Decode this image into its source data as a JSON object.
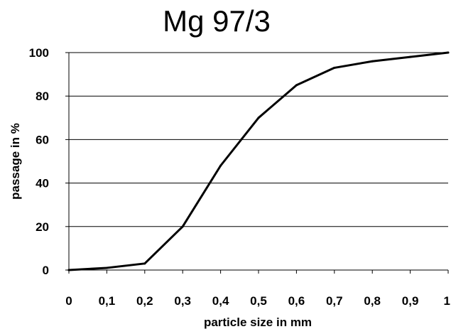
{
  "chart_data": {
    "type": "line",
    "title": "Mg 97/3",
    "xlabel": "particle size in mm",
    "ylabel": "passage in %",
    "xlim": [
      0,
      1
    ],
    "ylim": [
      0,
      100
    ],
    "x_ticks": [
      0,
      0.1,
      0.2,
      0.3,
      0.4,
      0.5,
      0.6,
      0.7,
      0.8,
      0.9,
      1
    ],
    "x_tick_labels": [
      "0",
      "0,1",
      "0,2",
      "0,3",
      "0,4",
      "0,5",
      "0,6",
      "0,7",
      "0,8",
      "0,9",
      "1"
    ],
    "y_ticks": [
      0,
      20,
      40,
      60,
      80,
      100
    ],
    "y_tick_labels": [
      "0",
      "20",
      "40",
      "60",
      "80",
      "100"
    ],
    "grid": "horizontal",
    "legend": "none",
    "series": [
      {
        "color": "#000000",
        "points": [
          {
            "x": 0,
            "y": 0
          },
          {
            "x": 0.1,
            "y": 1
          },
          {
            "x": 0.2,
            "y": 3
          },
          {
            "x": 0.3,
            "y": 20
          },
          {
            "x": 0.4,
            "y": 48
          },
          {
            "x": 0.5,
            "y": 70
          },
          {
            "x": 0.6,
            "y": 85
          },
          {
            "x": 0.7,
            "y": 93
          },
          {
            "x": 0.8,
            "y": 96
          },
          {
            "x": 0.9,
            "y": 98
          },
          {
            "x": 1,
            "y": 100
          }
        ]
      }
    ]
  }
}
